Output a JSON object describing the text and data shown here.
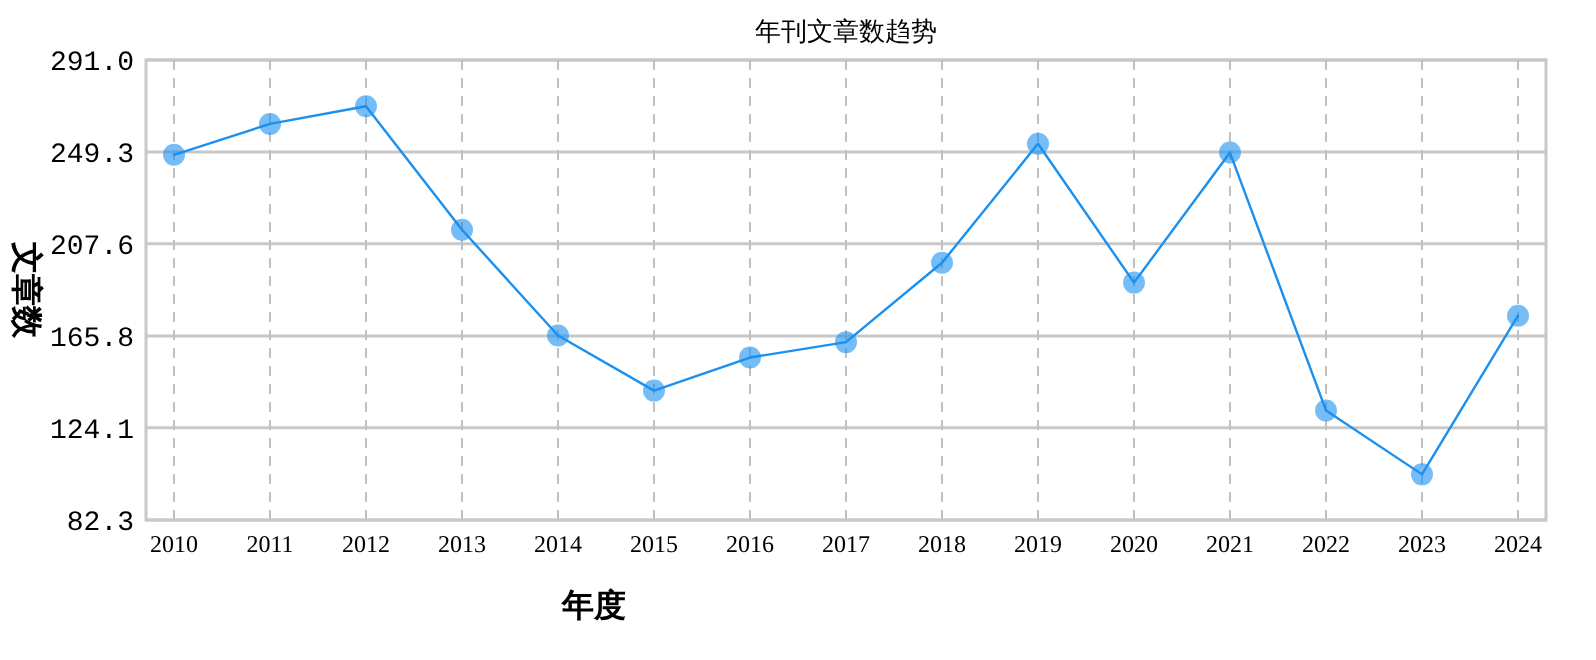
{
  "chart_data": {
    "type": "line",
    "title": "年刊文章数趋势",
    "xlabel": "年度",
    "ylabel": "文章数",
    "categories": [
      "2010",
      "2011",
      "2012",
      "2013",
      "2014",
      "2015",
      "2016",
      "2017",
      "2018",
      "2019",
      "2020",
      "2021",
      "2022",
      "2023",
      "2024"
    ],
    "series": [
      {
        "color": "#1a90f0",
        "values": [
          248,
          262,
          270,
          214,
          166,
          141,
          156,
          163,
          199,
          253,
          190,
          249,
          132,
          103,
          175
        ]
      }
    ],
    "ylim": [
      82.3,
      291.0
    ],
    "yticks": [
      {
        "value": 82.3,
        "label": "82.3"
      },
      {
        "value": 124.1,
        "label": "124.1"
      },
      {
        "value": 165.8,
        "label": "165.8"
      },
      {
        "value": 207.6,
        "label": "207.6"
      },
      {
        "value": 249.3,
        "label": "249.3"
      },
      {
        "value": 291.0,
        "label": "291.0"
      }
    ],
    "grid": true,
    "marker": "circle",
    "line_style": "solid"
  }
}
